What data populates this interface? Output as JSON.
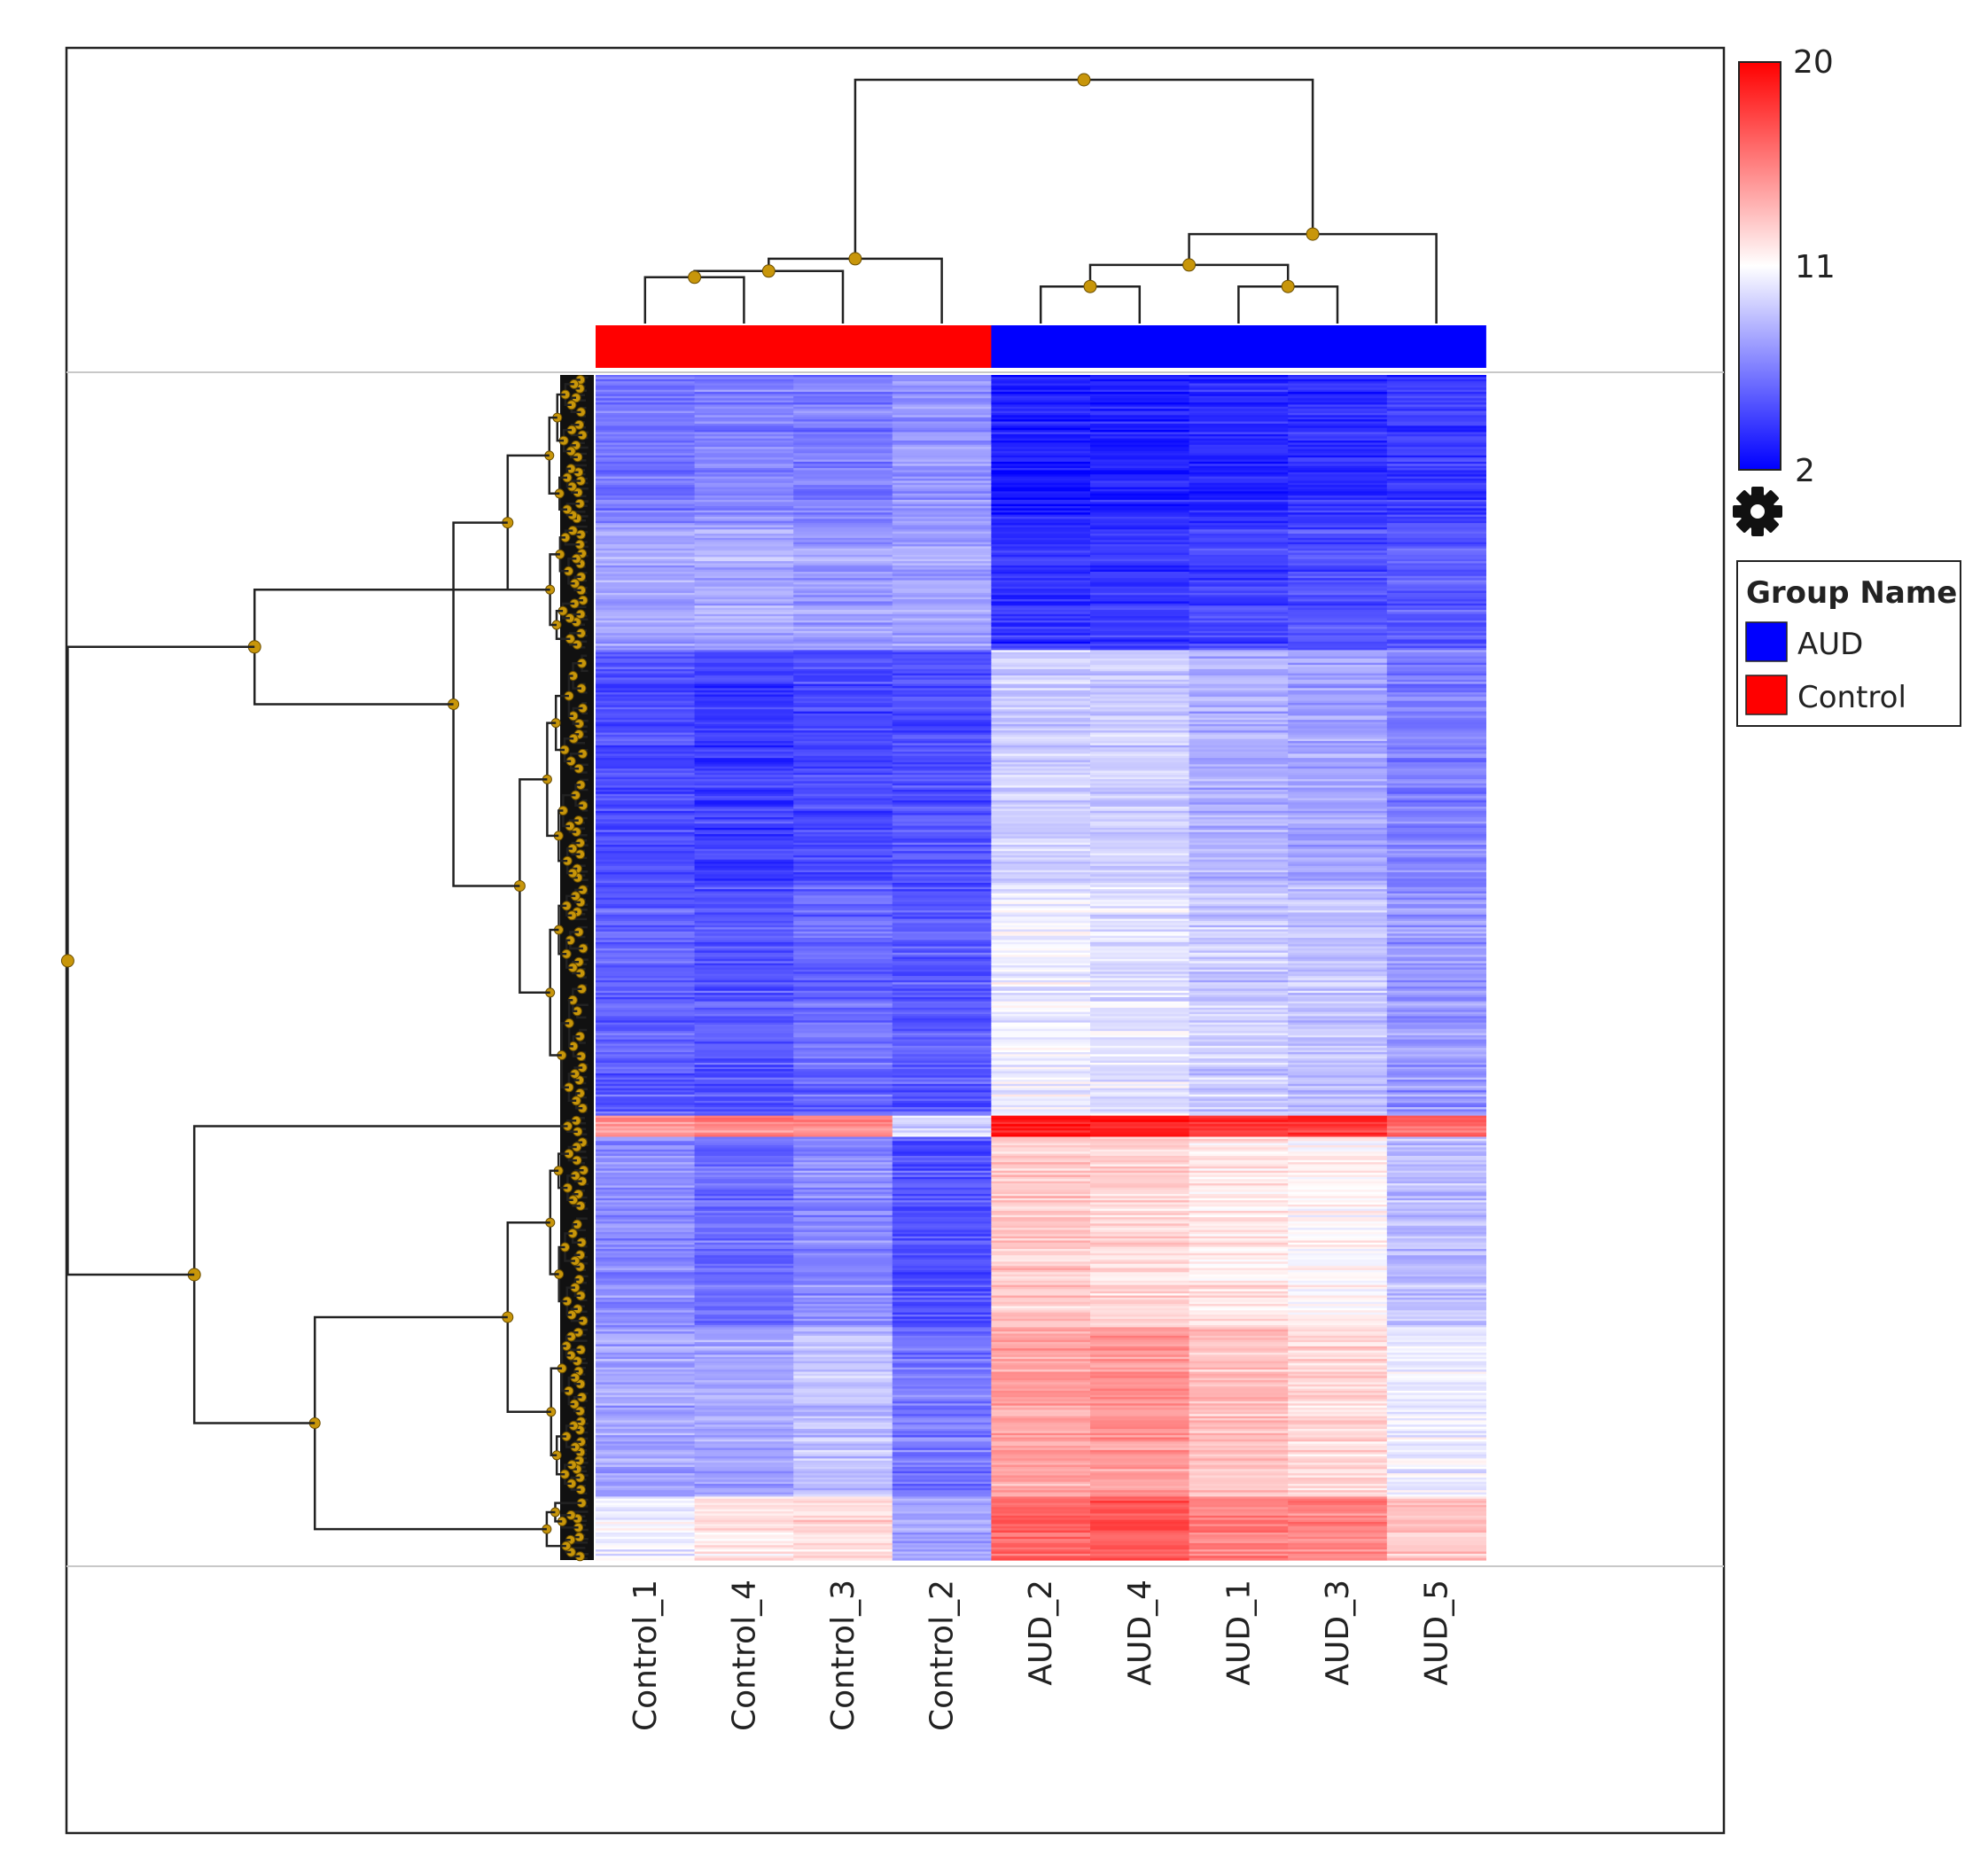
{
  "chart_data": {
    "type": "heatmap",
    "title": "",
    "columns": [
      "Control_1",
      "Control_4",
      "Control_3",
      "Control_2",
      "AUD_2",
      "AUD_4",
      "AUD_1",
      "AUD_3",
      "AUD_5"
    ],
    "column_groups": [
      "Control",
      "Control",
      "Control",
      "Control",
      "AUD",
      "AUD",
      "AUD",
      "AUD",
      "AUD"
    ],
    "colorscale": {
      "min": 2,
      "mid": 11,
      "max": 20,
      "min_color": "#0000ff",
      "mid_color": "#ffffff",
      "max_color": "#ff0000",
      "ticks": [
        "20",
        "11",
        "2"
      ]
    },
    "row_blocks": [
      {
        "rows": 70,
        "values": [
          6.2,
          6.6,
          6.4,
          7.2,
          3.0,
          3.2,
          3.4,
          3.6,
          4.0
        ]
      },
      {
        "rows": 60,
        "values": [
          7.8,
          8.0,
          7.6,
          7.8,
          3.8,
          4.0,
          4.4,
          4.8,
          5.2
        ]
      },
      {
        "rows": 110,
        "values": [
          4.8,
          4.2,
          4.6,
          4.8,
          9.2,
          9.2,
          8.2,
          7.8,
          6.4
        ]
      },
      {
        "rows": 110,
        "values": [
          5.4,
          5.0,
          5.8,
          5.2,
          10.4,
          10.0,
          9.2,
          8.8,
          7.4
        ]
      },
      {
        "rows": 10,
        "values": [
          14.5,
          15.0,
          15.0,
          9.5,
          19.0,
          19.0,
          18.0,
          18.0,
          16.5
        ]
      },
      {
        "rows": 90,
        "values": [
          7.0,
          6.0,
          7.0,
          5.0,
          13.0,
          12.6,
          12.0,
          11.4,
          8.8
        ]
      },
      {
        "rows": 80,
        "values": [
          7.8,
          7.8,
          8.8,
          6.2,
          14.2,
          14.6,
          13.2,
          12.4,
          10.4
        ]
      },
      {
        "rows": 30,
        "values": [
          10.4,
          11.8,
          12.2,
          7.8,
          16.4,
          16.8,
          15.6,
          15.2,
          13.2
        ]
      }
    ],
    "column_dendrogram": {
      "leaves": [
        "Control_1",
        "Control_4",
        "Control_3",
        "Control_2",
        "AUD_2",
        "AUD_4",
        "AUD_1",
        "AUD_3",
        "AUD_5"
      ],
      "merges": [
        [
          0,
          1,
          0.15
        ],
        [
          9,
          2,
          0.17
        ],
        [
          10,
          3,
          0.21
        ],
        [
          4,
          5,
          0.12
        ],
        [
          6,
          7,
          0.12
        ],
        [
          12,
          13,
          0.19
        ],
        [
          14,
          8,
          0.29
        ],
        [
          11,
          15,
          0.79
        ]
      ]
    },
    "legend": {
      "title": "Group Name",
      "items": [
        {
          "label": "AUD",
          "color": "#0000ff"
        },
        {
          "label": "Control",
          "color": "#ff0000"
        }
      ]
    },
    "settings_icon": "gear-icon"
  }
}
